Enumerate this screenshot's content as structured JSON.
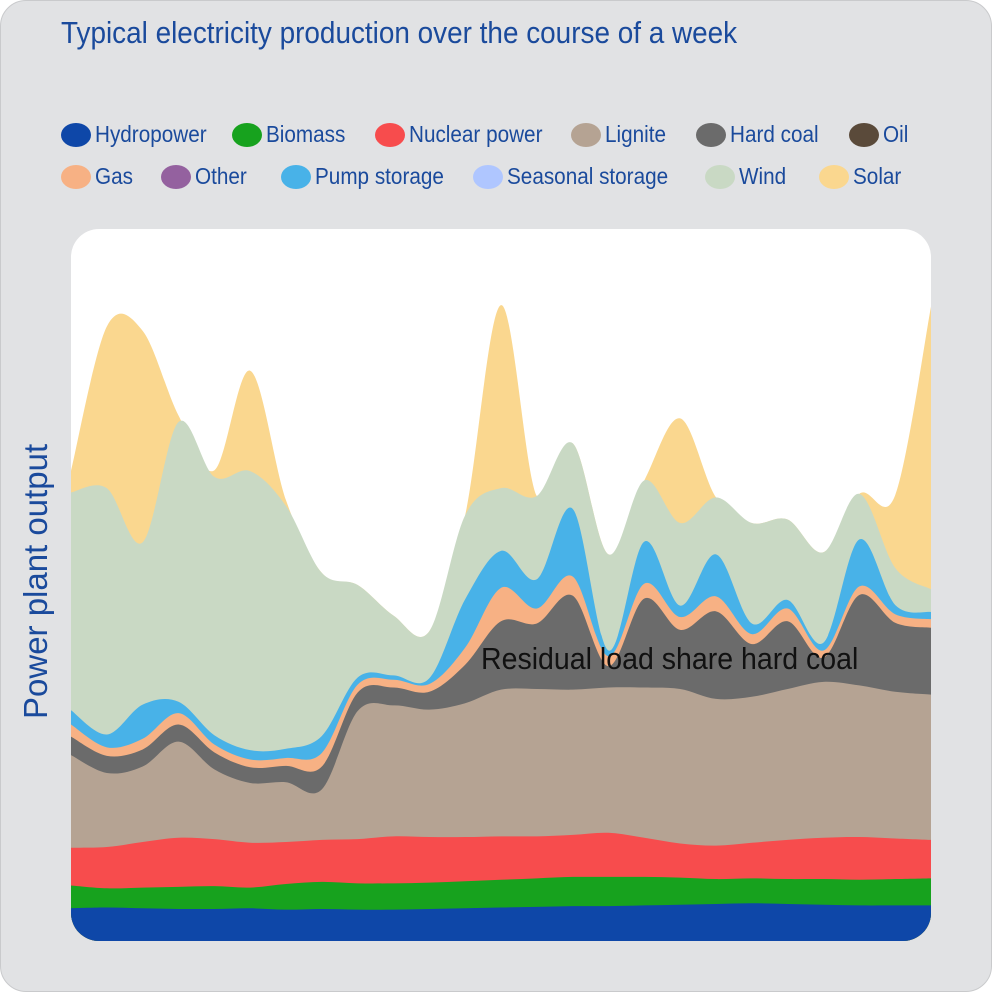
{
  "chart_data": {
    "type": "area",
    "title": "Typical electricity production over the course of a week",
    "ylabel": "Power plant output",
    "xlabel": "",
    "annotation": "Residual load share hard coal",
    "legend_position": "top",
    "ylim": [
      0,
      100
    ],
    "x": [
      0,
      1,
      2,
      3,
      4,
      5,
      6,
      7,
      8,
      9,
      10,
      11,
      12,
      13,
      14,
      15,
      16,
      17,
      18,
      19,
      20,
      21,
      22,
      23,
      24
    ],
    "series": [
      {
        "name": "Hydropower",
        "color": "#0e47a8",
        "values": [
          4.6,
          4.7,
          4.6,
          4.5,
          4.5,
          4.6,
          4.4,
          4.5,
          4.4,
          4.4,
          4.5,
          4.6,
          4.7,
          4.8,
          4.9,
          4.9,
          5.0,
          5.1,
          5.2,
          5.3,
          5.2,
          5.1,
          5.0,
          5.0,
          5.0
        ]
      },
      {
        "name": "Biomass",
        "color": "#17a21e",
        "values": [
          3.2,
          2.7,
          2.9,
          3.1,
          3.2,
          2.9,
          3.6,
          3.8,
          3.7,
          3.7,
          3.7,
          3.8,
          3.9,
          4.0,
          4.1,
          4.1,
          4.0,
          3.8,
          3.5,
          3.5,
          3.5,
          3.6,
          3.6,
          3.7,
          3.8
        ]
      },
      {
        "name": "Nuclear power",
        "color": "#f74c4d",
        "values": [
          5.3,
          5.8,
          6.4,
          6.9,
          6.6,
          6.3,
          5.9,
          5.9,
          6.2,
          6.6,
          6.4,
          6.2,
          6.1,
          5.9,
          5.9,
          6.2,
          5.5,
          4.8,
          4.7,
          5.0,
          5.5,
          5.8,
          6.0,
          5.7,
          5.4
        ]
      },
      {
        "name": "Lignite",
        "color": "#b5a393",
        "values": [
          13.0,
          10.4,
          10.6,
          13.5,
          9.8,
          8.4,
          8.4,
          7.1,
          18.0,
          18.4,
          17.9,
          18.8,
          20.6,
          20.7,
          20.4,
          20.4,
          21.1,
          21.7,
          20.6,
          20.5,
          21.2,
          21.9,
          21.3,
          20.6,
          20.4
        ]
      },
      {
        "name": "Hard coal",
        "color": "#6b6b6b",
        "values": [
          2.6,
          2.4,
          2.4,
          2.4,
          2.4,
          2.2,
          2.3,
          3.2,
          2.6,
          2.5,
          2.5,
          5.4,
          9.6,
          9.2,
          13.2,
          3.0,
          12.5,
          8.3,
          12.3,
          7.4,
          9.5,
          3.4,
          12.7,
          9.7,
          9.4
        ]
      },
      {
        "name": "Oil",
        "color": "#5a4a3a",
        "values": [
          0,
          0,
          0,
          0,
          0,
          0,
          0,
          0,
          0,
          0,
          0,
          0,
          0,
          0,
          0,
          0,
          0,
          0,
          0,
          0,
          0,
          0,
          0,
          0,
          0
        ]
      },
      {
        "name": "Gas",
        "color": "#f7b184",
        "values": [
          1.7,
          1.2,
          1.5,
          1.6,
          1.1,
          1.1,
          1.1,
          1.9,
          1.1,
          1.1,
          1.1,
          2.4,
          4.7,
          2.1,
          2.7,
          1.4,
          2.1,
          1.8,
          2.1,
          1.4,
          1.8,
          1.0,
          1.2,
          1.2,
          1.2
        ]
      },
      {
        "name": "Other",
        "color": "#94619f",
        "values": [
          0,
          0,
          0,
          0,
          0,
          0,
          0,
          0,
          0,
          0,
          0,
          0,
          0,
          0,
          0,
          0,
          0,
          0,
          0,
          0,
          0,
          0,
          0,
          0,
          0
        ]
      },
      {
        "name": "Pump storage",
        "color": "#48b2e8",
        "values": [
          2.0,
          1.8,
          4.8,
          1.6,
          1.3,
          1.3,
          1.3,
          2.4,
          1.0,
          0.6,
          0.8,
          6.8,
          5.2,
          4.1,
          9.5,
          0.8,
          5.9,
          1.6,
          5.9,
          1.5,
          1.2,
          1.1,
          6.6,
          1.3,
          1.0
        ]
      },
      {
        "name": "Seasonal storage",
        "color": "#afc6ff",
        "values": [
          0,
          0,
          0,
          0,
          0,
          0,
          0,
          0,
          0,
          0,
          0,
          0,
          0,
          0,
          0,
          0,
          0,
          0,
          0,
          0,
          0,
          0,
          0,
          0,
          0
        ]
      },
      {
        "name": "Wind",
        "color": "#c9d9c4",
        "values": [
          30.6,
          34.6,
          22.8,
          39.3,
          36.3,
          39.2,
          34.1,
          22.9,
          13.0,
          8.4,
          6.6,
          11.8,
          8.8,
          11.7,
          9.2,
          13.5,
          8.6,
          11.6,
          8.0,
          14.1,
          11.3,
          12.7,
          6.4,
          5.2,
          3.2
        ]
      },
      {
        "name": "Solar",
        "color": "#fad78f",
        "values": [
          3.0,
          22.7,
          29.7,
          0.9,
          0.9,
          14.1,
          0.8,
          0,
          0,
          0,
          0,
          0,
          25.7,
          0,
          0,
          0,
          0,
          14.7,
          0,
          0,
          0,
          0,
          0,
          10.2,
          39.7
        ]
      }
    ]
  },
  "legend_rows": [
    [
      "Hydropower",
      "Biomass",
      "Nuclear power",
      "Lignite",
      "Hard coal",
      "Oil"
    ],
    [
      "Gas",
      "Other",
      "Pump storage",
      "Seasonal storage",
      "Wind",
      "Solar"
    ]
  ]
}
